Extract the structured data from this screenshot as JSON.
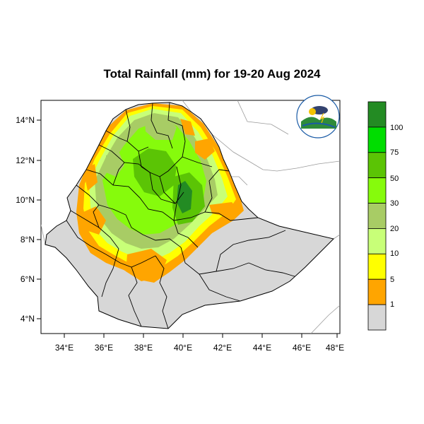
{
  "title": "Total Rainfall (mm) for 19-20 Aug 2024",
  "axes": {
    "x_ticks": [
      "34°E",
      "36°E",
      "38°E",
      "40°E",
      "42°E",
      "44°E",
      "46°E",
      "48°E"
    ],
    "y_ticks": [
      "14°N",
      "12°N",
      "10°N",
      "8°N",
      "6°N",
      "4°N"
    ]
  },
  "colorbar": {
    "labels": [
      "100",
      "75",
      "50",
      "30",
      "20",
      "10",
      "5",
      "1"
    ],
    "colors": [
      "#238b23",
      "#00dd00",
      "#5bc405",
      "#86fb0c",
      "#a8cc65",
      "#c8ff78",
      "#ffff00",
      "#ffa500",
      "#d7d7d7"
    ]
  },
  "chart_data": {
    "type": "heatmap",
    "title": "Total Rainfall (mm) for 19-20 Aug 2024",
    "x_range": [
      33,
      48
    ],
    "y_range": [
      3,
      15
    ],
    "x_ticks": [
      34,
      36,
      38,
      40,
      42,
      44,
      46,
      48
    ],
    "y_ticks": [
      14,
      12,
      10,
      8,
      6,
      4
    ],
    "levels": [
      1,
      5,
      10,
      20,
      30,
      50,
      75,
      100
    ]
  }
}
